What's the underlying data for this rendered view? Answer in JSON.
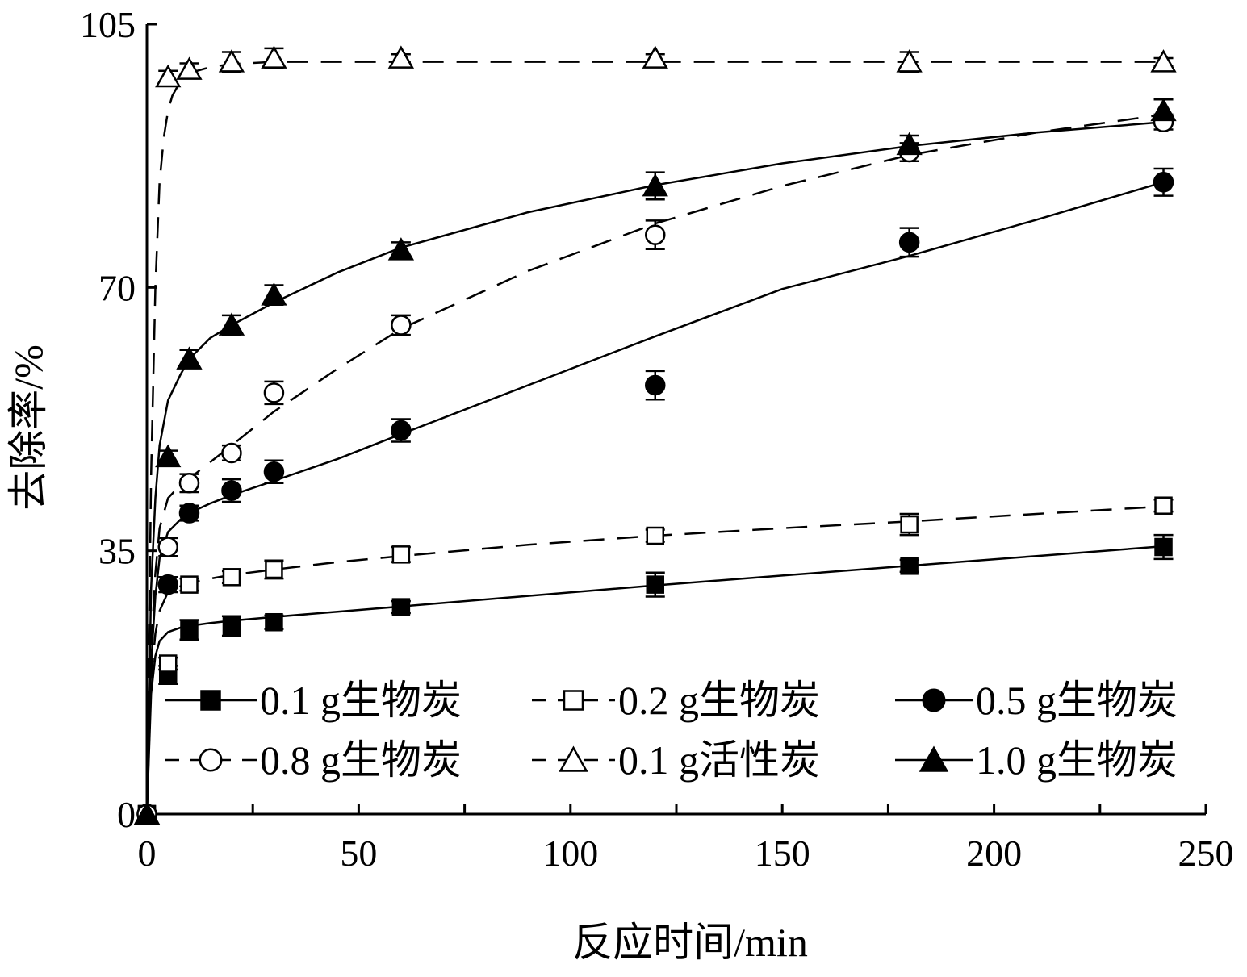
{
  "chart_data": {
    "type": "line",
    "xlabel": "反应时间/min",
    "ylabel": "去除率/%",
    "xlim": [
      0,
      250
    ],
    "ylim": [
      0,
      105
    ],
    "x_ticks": [
      0,
      50,
      100,
      150,
      200,
      250
    ],
    "y_ticks": [
      0,
      35,
      70,
      105
    ],
    "grid": false,
    "legend_position": "bottom, inside plot, two rows",
    "series": [
      {
        "name": "0.1 g生物炭",
        "marker": "square-filled",
        "line": "solid",
        "x": [
          0,
          5,
          10,
          20,
          30,
          60,
          120,
          180,
          240
        ],
        "y": [
          0,
          18.5,
          24.5,
          25,
          25.5,
          27.5,
          30.5,
          33,
          35.5
        ],
        "error": [
          0,
          1.2,
          1.3,
          1.3,
          0.9,
          0.8,
          1.6,
          0.8,
          1.6
        ],
        "fit_x": [
          0,
          1,
          2,
          3,
          5,
          8,
          10,
          15,
          20,
          30,
          45,
          60,
          90,
          120,
          150,
          180,
          210,
          240
        ],
        "fit_y": [
          0,
          16,
          21,
          23,
          24.2,
          24.8,
          25,
          25.4,
          25.7,
          26.2,
          26.9,
          27.6,
          29,
          30.4,
          31.7,
          33,
          34.3,
          35.6
        ]
      },
      {
        "name": "0.2 g生物炭",
        "marker": "square-open",
        "line": "dashed",
        "x": [
          0,
          5,
          10,
          20,
          30,
          60,
          120,
          180,
          240
        ],
        "y": [
          0,
          20,
          30.5,
          31.5,
          32.5,
          34.5,
          37,
          38.5,
          41
        ],
        "error": [
          0,
          0.8,
          0.8,
          0.8,
          1.2,
          1.0,
          0.8,
          1.4,
          0.8
        ],
        "fit_x": [
          0,
          1,
          2,
          3,
          5,
          8,
          10,
          15,
          20,
          30,
          45,
          60,
          90,
          120,
          150,
          180,
          210,
          240
        ],
        "fit_y": [
          0,
          18,
          24,
          27,
          29.5,
          30.3,
          30.7,
          31.3,
          31.8,
          32.5,
          33.5,
          34.3,
          35.8,
          37,
          38,
          38.9,
          39.9,
          40.9
        ]
      },
      {
        "name": "0.5 g生物炭",
        "marker": "circle-filled",
        "line": "solid",
        "x": [
          0,
          5,
          10,
          20,
          30,
          60,
          120,
          180,
          240
        ],
        "y": [
          0,
          30.5,
          40,
          43,
          45.5,
          51,
          57,
          76,
          84
        ],
        "error": [
          0,
          1.0,
          1.0,
          1.5,
          1.5,
          1.5,
          1.9,
          1.9,
          1.8
        ],
        "fit_x": [
          0,
          1,
          2,
          3,
          5,
          8,
          10,
          15,
          20,
          30,
          45,
          60,
          90,
          120,
          150,
          180,
          210,
          240
        ],
        "fit_y": [
          0,
          20,
          29,
          34,
          37.5,
          39.2,
          40,
          41.3,
          42.4,
          44.3,
          47.2,
          50.5,
          57,
          63.5,
          69.8,
          74.2,
          79,
          84
        ]
      },
      {
        "name": "0.8 g生物炭",
        "marker": "circle-open",
        "line": "dashed",
        "x": [
          0,
          5,
          10,
          20,
          30,
          60,
          120,
          180,
          240
        ],
        "y": [
          0,
          35.5,
          44,
          48,
          56,
          65,
          77,
          88,
          92
        ],
        "error": [
          0,
          1.2,
          1.2,
          1.0,
          1.5,
          1.3,
          1.9,
          1.2,
          1.0
        ],
        "fit_x": [
          0,
          1,
          2,
          3,
          5,
          8,
          10,
          15,
          20,
          30,
          45,
          60,
          90,
          120,
          150,
          180,
          210,
          240
        ],
        "fit_y": [
          0,
          22,
          32,
          38,
          42,
          43.8,
          44.6,
          46.8,
          49,
          53.5,
          59.2,
          64.5,
          72.2,
          78.5,
          83.5,
          87.6,
          90.6,
          93
        ]
      },
      {
        "name": "0.1 g活性炭",
        "marker": "triangle-open",
        "line": "dashed",
        "x": [
          0,
          5,
          10,
          20,
          30,
          60,
          120,
          180,
          240
        ],
        "y": [
          0,
          98,
          99,
          100,
          100.5,
          100.5,
          100.5,
          100,
          100
        ],
        "error": [
          0,
          0.8,
          0.8,
          1.3,
          1.3,
          0.5,
          0.5,
          1.3,
          0.5
        ],
        "fit_x": [
          0,
          1,
          2,
          3,
          4,
          5,
          6,
          8,
          10,
          15,
          20,
          30,
          60,
          120,
          180,
          240
        ],
        "fit_y": [
          0,
          45,
          70,
          84,
          90,
          93.5,
          95.5,
          97.5,
          98.5,
          99.3,
          99.7,
          100,
          100,
          100,
          100,
          100
        ]
      },
      {
        "name": "1.0 g生物炭",
        "marker": "triangle-filled",
        "line": "solid",
        "x": [
          0,
          5,
          10,
          20,
          30,
          60,
          120,
          180,
          240
        ],
        "y": [
          0,
          47.5,
          60.5,
          65,
          69,
          75,
          83.5,
          89,
          93.5
        ],
        "error": [
          0,
          0.8,
          1.2,
          1.3,
          1.3,
          1.0,
          1.8,
          1.2,
          1.5
        ],
        "fit_x": [
          0,
          1,
          2,
          3,
          5,
          8,
          10,
          15,
          20,
          30,
          45,
          60,
          90,
          120,
          150,
          180,
          210,
          240
        ],
        "fit_y": [
          0,
          30,
          42,
          49,
          55,
          58.5,
          60.5,
          63.3,
          65,
          68,
          72,
          75.3,
          80,
          83.6,
          86.5,
          88.8,
          90.6,
          92
        ]
      }
    ]
  }
}
